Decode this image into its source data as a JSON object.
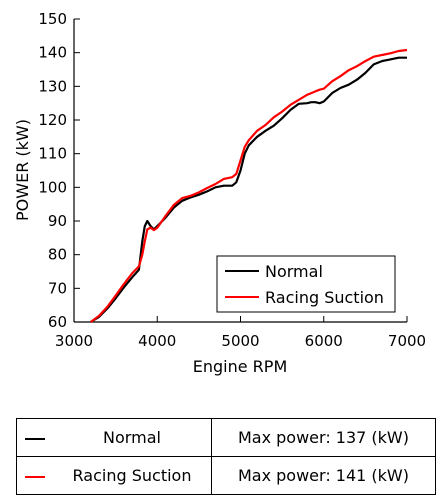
{
  "chart_data": {
    "type": "line",
    "title": "",
    "xlabel": "Engine RPM",
    "ylabel": "POWER (kW)",
    "xlim": [
      3000,
      7000
    ],
    "ylim": [
      60,
      150
    ],
    "xticks": [
      3000,
      4000,
      5000,
      6000,
      7000
    ],
    "yticks": [
      60,
      70,
      80,
      90,
      100,
      110,
      120,
      130,
      140,
      150
    ],
    "grid": false,
    "legend": "bottom-right",
    "series": [
      {
        "name": "Normal",
        "color": "#000000",
        "x": [
          3200,
          3300,
          3400,
          3500,
          3600,
          3700,
          3780,
          3820,
          3850,
          3880,
          3920,
          3960,
          4000,
          4100,
          4200,
          4300,
          4400,
          4500,
          4600,
          4700,
          4800,
          4900,
          4950,
          5000,
          5050,
          5100,
          5200,
          5300,
          5400,
          5500,
          5600,
          5700,
          5800,
          5850,
          5900,
          5950,
          6000,
          6100,
          6200,
          6300,
          6400,
          6500,
          6600,
          6700,
          6800,
          6900,
          7000
        ],
        "y": [
          60.0,
          61.5,
          64.0,
          67.0,
          70.3,
          73.3,
          75.5,
          84.0,
          88.5,
          90.0,
          88.5,
          87.5,
          88.5,
          91.0,
          94.0,
          96.0,
          97.0,
          97.8,
          98.8,
          100.0,
          100.5,
          100.5,
          101.5,
          105.0,
          110.0,
          112.5,
          115.0,
          116.8,
          118.3,
          120.5,
          123.0,
          124.8,
          125.0,
          125.3,
          125.3,
          125.0,
          125.5,
          128.0,
          129.5,
          130.5,
          132.0,
          134.0,
          136.5,
          137.5,
          138.0,
          138.5,
          138.5
        ]
      },
      {
        "name": "Racing Suction",
        "color": "#ff0000",
        "x": [
          3200,
          3300,
          3400,
          3500,
          3600,
          3700,
          3780,
          3820,
          3850,
          3880,
          3920,
          3960,
          4000,
          4100,
          4200,
          4300,
          4400,
          4500,
          4600,
          4700,
          4800,
          4900,
          4950,
          5000,
          5050,
          5100,
          5200,
          5300,
          5400,
          5500,
          5600,
          5700,
          5800,
          5850,
          5900,
          5950,
          6000,
          6100,
          6200,
          6300,
          6400,
          6500,
          6600,
          6700,
          6800,
          6900,
          7000
        ],
        "y": [
          60.0,
          61.8,
          64.5,
          67.8,
          71.3,
          74.5,
          76.5,
          80.0,
          84.0,
          87.5,
          88.0,
          87.3,
          88.0,
          91.5,
          94.8,
          96.8,
          97.5,
          98.5,
          99.8,
          101.0,
          102.5,
          103.0,
          104.0,
          108.0,
          112.0,
          114.0,
          116.8,
          118.5,
          120.8,
          122.5,
          124.5,
          126.0,
          127.5,
          128.0,
          128.5,
          129.0,
          129.3,
          131.5,
          133.0,
          134.8,
          136.0,
          137.5,
          138.8,
          139.3,
          139.8,
          140.5,
          140.8
        ]
      }
    ]
  },
  "summary_table": [
    {
      "name": "Normal",
      "max_power": "Max power: 137 (kW)",
      "color": "#000000"
    },
    {
      "name": "Racing Suction",
      "max_power": "Max power: 141 (kW)",
      "color": "#ff0000"
    }
  ]
}
